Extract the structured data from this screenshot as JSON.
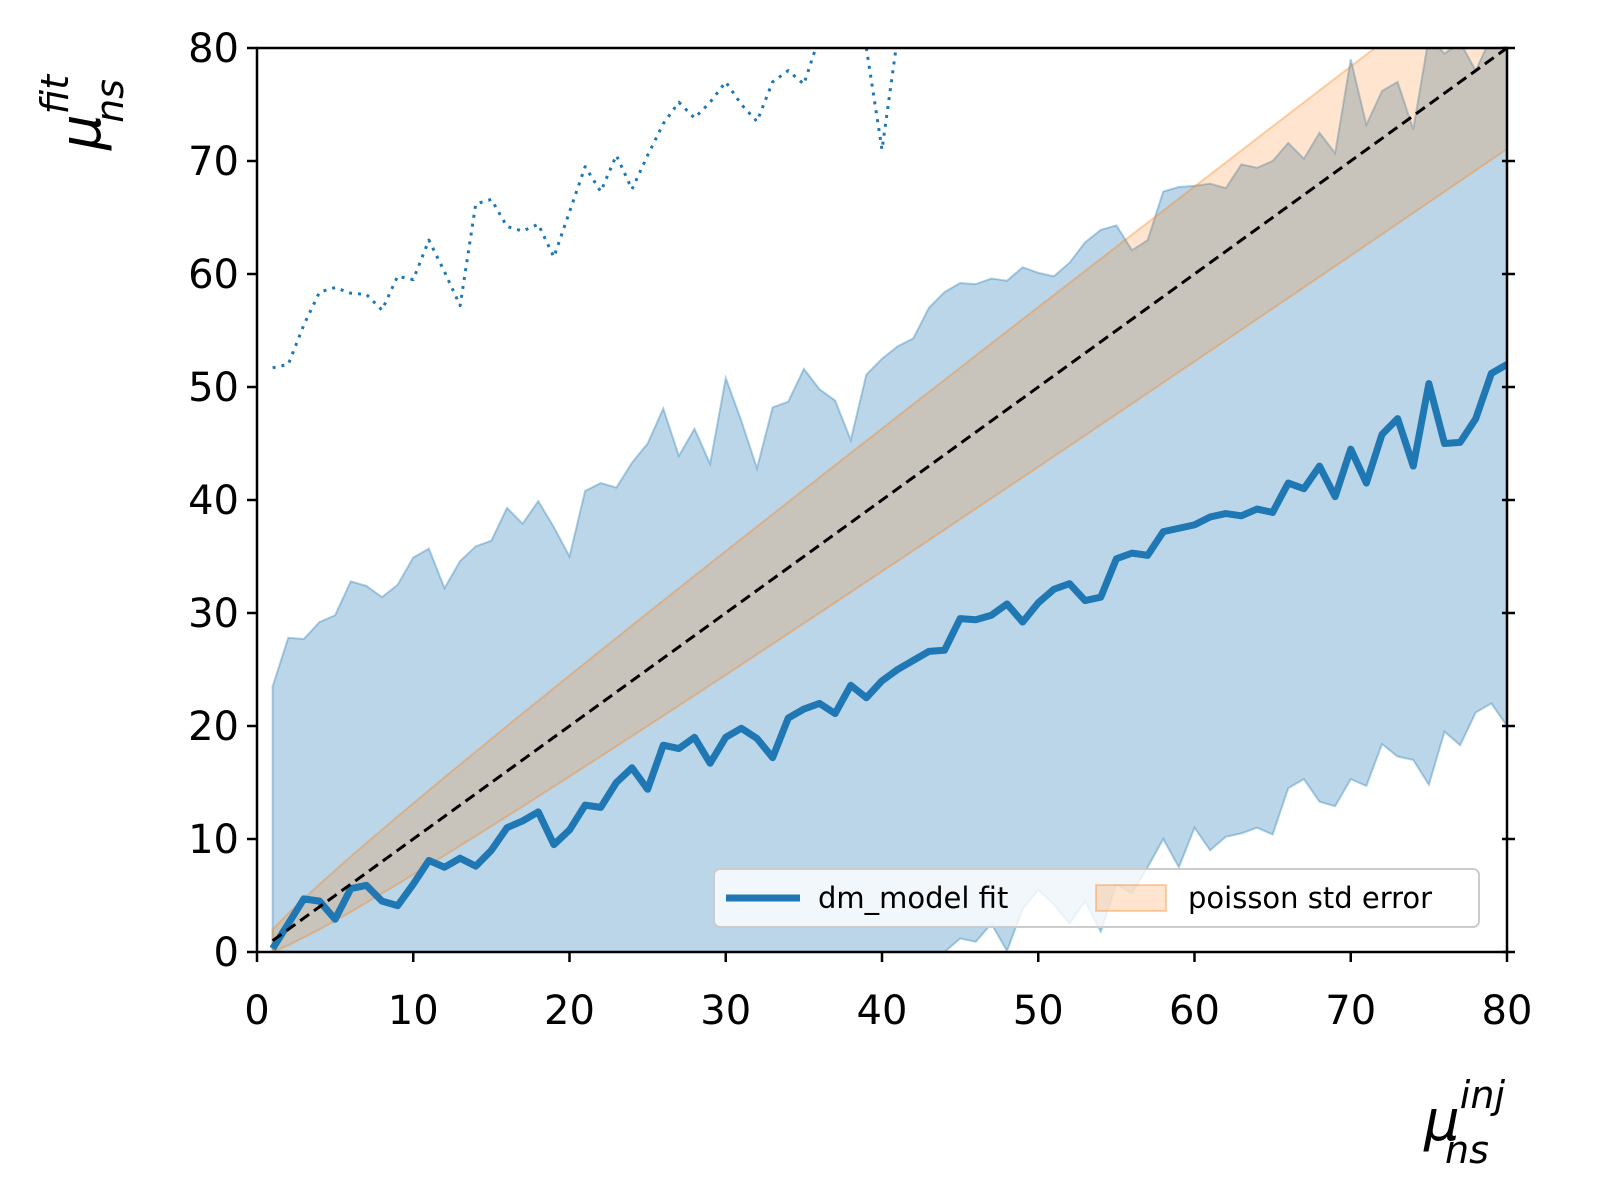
{
  "chart_data": {
    "type": "line",
    "xlabel": {
      "base": "μ",
      "sub": "ns",
      "sup": "inj"
    },
    "ylabel": {
      "base": "μ",
      "sub": "ns",
      "sup": "fit"
    },
    "x": [
      1,
      2,
      3,
      4,
      5,
      6,
      7,
      8,
      9,
      10,
      11,
      12,
      13,
      14,
      15,
      16,
      17,
      18,
      19,
      20,
      21,
      22,
      23,
      24,
      25,
      26,
      27,
      28,
      29,
      30,
      31,
      32,
      33,
      34,
      35,
      36,
      37,
      38,
      39,
      40,
      41,
      42,
      43,
      44,
      45,
      46,
      47,
      48,
      49,
      50,
      51,
      52,
      53,
      54,
      55,
      56,
      57,
      58,
      59,
      60,
      61,
      62,
      63,
      64,
      65,
      66,
      67,
      68,
      69,
      70,
      71,
      72,
      73,
      74,
      75,
      76,
      77,
      78,
      79,
      80
    ],
    "series": [
      {
        "name": "dm_model fit",
        "color": "#1f77b4",
        "style": "solid",
        "values": [
          0.3,
          2.5,
          4.7,
          4.5,
          2.9,
          5.6,
          5.9,
          4.5,
          4.1,
          6,
          8.1,
          7.5,
          8.3,
          7.6,
          9,
          11,
          11.6,
          12.4,
          9.5,
          10.8,
          13,
          12.8,
          15,
          16.3,
          14.4,
          18.3,
          18,
          19,
          16.7,
          19,
          19.8,
          18.9,
          17.2,
          20.7,
          21.5,
          22,
          21.1,
          23.6,
          22.5,
          24,
          25,
          25.8,
          26.6,
          26.7,
          29.5,
          29.4,
          29.8,
          30.8,
          29.2,
          30.9,
          32.1,
          32.6,
          31.1,
          31.4,
          34.8,
          35.3,
          35.1,
          37.2,
          37.5,
          37.8,
          38.5,
          38.8,
          38.6,
          39.2,
          38.9,
          41.5,
          41,
          43,
          40.3,
          44.5,
          41.5,
          45.8,
          47.2,
          43,
          50.3,
          45,
          45.1,
          47.2,
          51.2,
          52
        ]
      },
      {
        "color": "#1f77b4",
        "style": "dotted",
        "values": [
          51.7,
          52,
          55.5,
          58.4,
          58.8,
          58.3,
          58.2,
          56.8,
          59.8,
          59.5,
          63,
          60.2,
          57.2,
          66.2,
          66.6,
          64.2,
          63.8,
          64.4,
          61.5,
          65.5,
          69.5,
          67.3,
          70.5,
          67.5,
          70.5,
          73.3,
          75.2,
          73.8,
          75.2,
          77,
          75,
          73.5,
          77,
          78,
          76.8,
          81,
          null,
          null,
          80,
          71,
          81,
          null,
          null,
          null,
          null,
          null,
          null,
          null,
          null,
          null,
          null,
          null,
          null,
          null,
          null,
          null,
          null,
          null,
          null,
          null,
          null,
          null,
          null,
          null,
          null,
          null,
          null,
          null,
          null,
          null,
          null,
          null,
          null,
          null,
          null,
          null,
          null,
          null,
          null,
          null
        ]
      }
    ],
    "range_band": {
      "color": "#1f77b4",
      "upper": [
        23.5,
        27.8,
        27.7,
        29.2,
        29.8,
        32.8,
        32.4,
        31.4,
        32.5,
        34.9,
        35.7,
        32.2,
        34.6,
        35.9,
        36.4,
        39.3,
        37.9,
        39.9,
        37.6,
        35,
        40.8,
        41.5,
        41.1,
        43.3,
        45,
        48.1,
        43.9,
        46.3,
        43.2,
        50.8,
        47,
        42.8,
        48.2,
        48.7,
        51.6,
        49.8,
        48.8,
        45.3,
        51.1,
        52.5,
        53.6,
        54.3,
        57,
        58.4,
        59.2,
        59.1,
        59.6,
        59.4,
        60.6,
        60.1,
        59.8,
        61,
        62.8,
        63.9,
        64.3,
        62.1,
        63,
        67.3,
        67.7,
        67.8,
        68,
        67.6,
        69.7,
        69.4,
        70,
        71.6,
        70.2,
        72.5,
        70.7,
        79,
        73.2,
        76.2,
        77,
        72.8,
        81,
        79.5,
        80.5,
        78,
        81,
        80
      ],
      "lower": [
        0,
        0,
        0,
        0,
        0,
        0,
        0,
        0,
        0,
        0,
        0,
        0,
        0,
        0,
        0,
        0,
        0,
        0,
        0,
        0,
        0,
        0,
        0,
        0,
        0,
        0,
        0,
        0,
        0,
        0,
        0,
        0,
        0,
        0,
        0,
        0,
        0,
        0,
        0,
        0,
        0,
        0,
        0,
        0,
        1.2,
        0.9,
        2.5,
        0.1,
        3.8,
        5.5,
        4.2,
        2.5,
        4.5,
        1.8,
        6,
        5.2,
        7.5,
        10,
        7.5,
        11,
        9,
        10.2,
        10.5,
        11,
        10.4,
        14.5,
        15.3,
        13.3,
        12.9,
        15.3,
        14.7,
        18.4,
        17.3,
        17,
        14.8,
        19.5,
        18.3,
        21.2,
        22,
        20
      ]
    },
    "poisson_band": {
      "name": "poisson std error",
      "color": "#ff7f0e",
      "x": [
        1,
        2,
        4,
        6,
        9,
        12,
        16,
        20,
        25,
        30,
        36,
        42,
        49,
        56,
        64,
        72,
        80
      ],
      "lower": [
        0,
        0.59,
        2,
        3.55,
        6,
        8.54,
        12,
        15.53,
        20,
        24.52,
        30,
        35.52,
        42,
        48.52,
        56,
        63.51,
        71.06
      ],
      "upper": [
        2,
        3.41,
        6,
        8.45,
        12,
        15.46,
        20,
        24.47,
        30,
        35.48,
        42,
        48.48,
        56,
        63.48,
        72,
        80.49,
        88.94
      ]
    },
    "reference": {
      "color": "#000000",
      "x": [
        1,
        80
      ],
      "values": [
        1,
        80
      ]
    },
    "xlim": [
      0,
      80
    ],
    "ylim": [
      0,
      80
    ],
    "xticks": [
      0,
      10,
      20,
      30,
      40,
      50,
      60,
      70,
      80
    ],
    "yticks": [
      0,
      10,
      20,
      30,
      40,
      50,
      60,
      70,
      80
    ],
    "legend": "lower right"
  }
}
